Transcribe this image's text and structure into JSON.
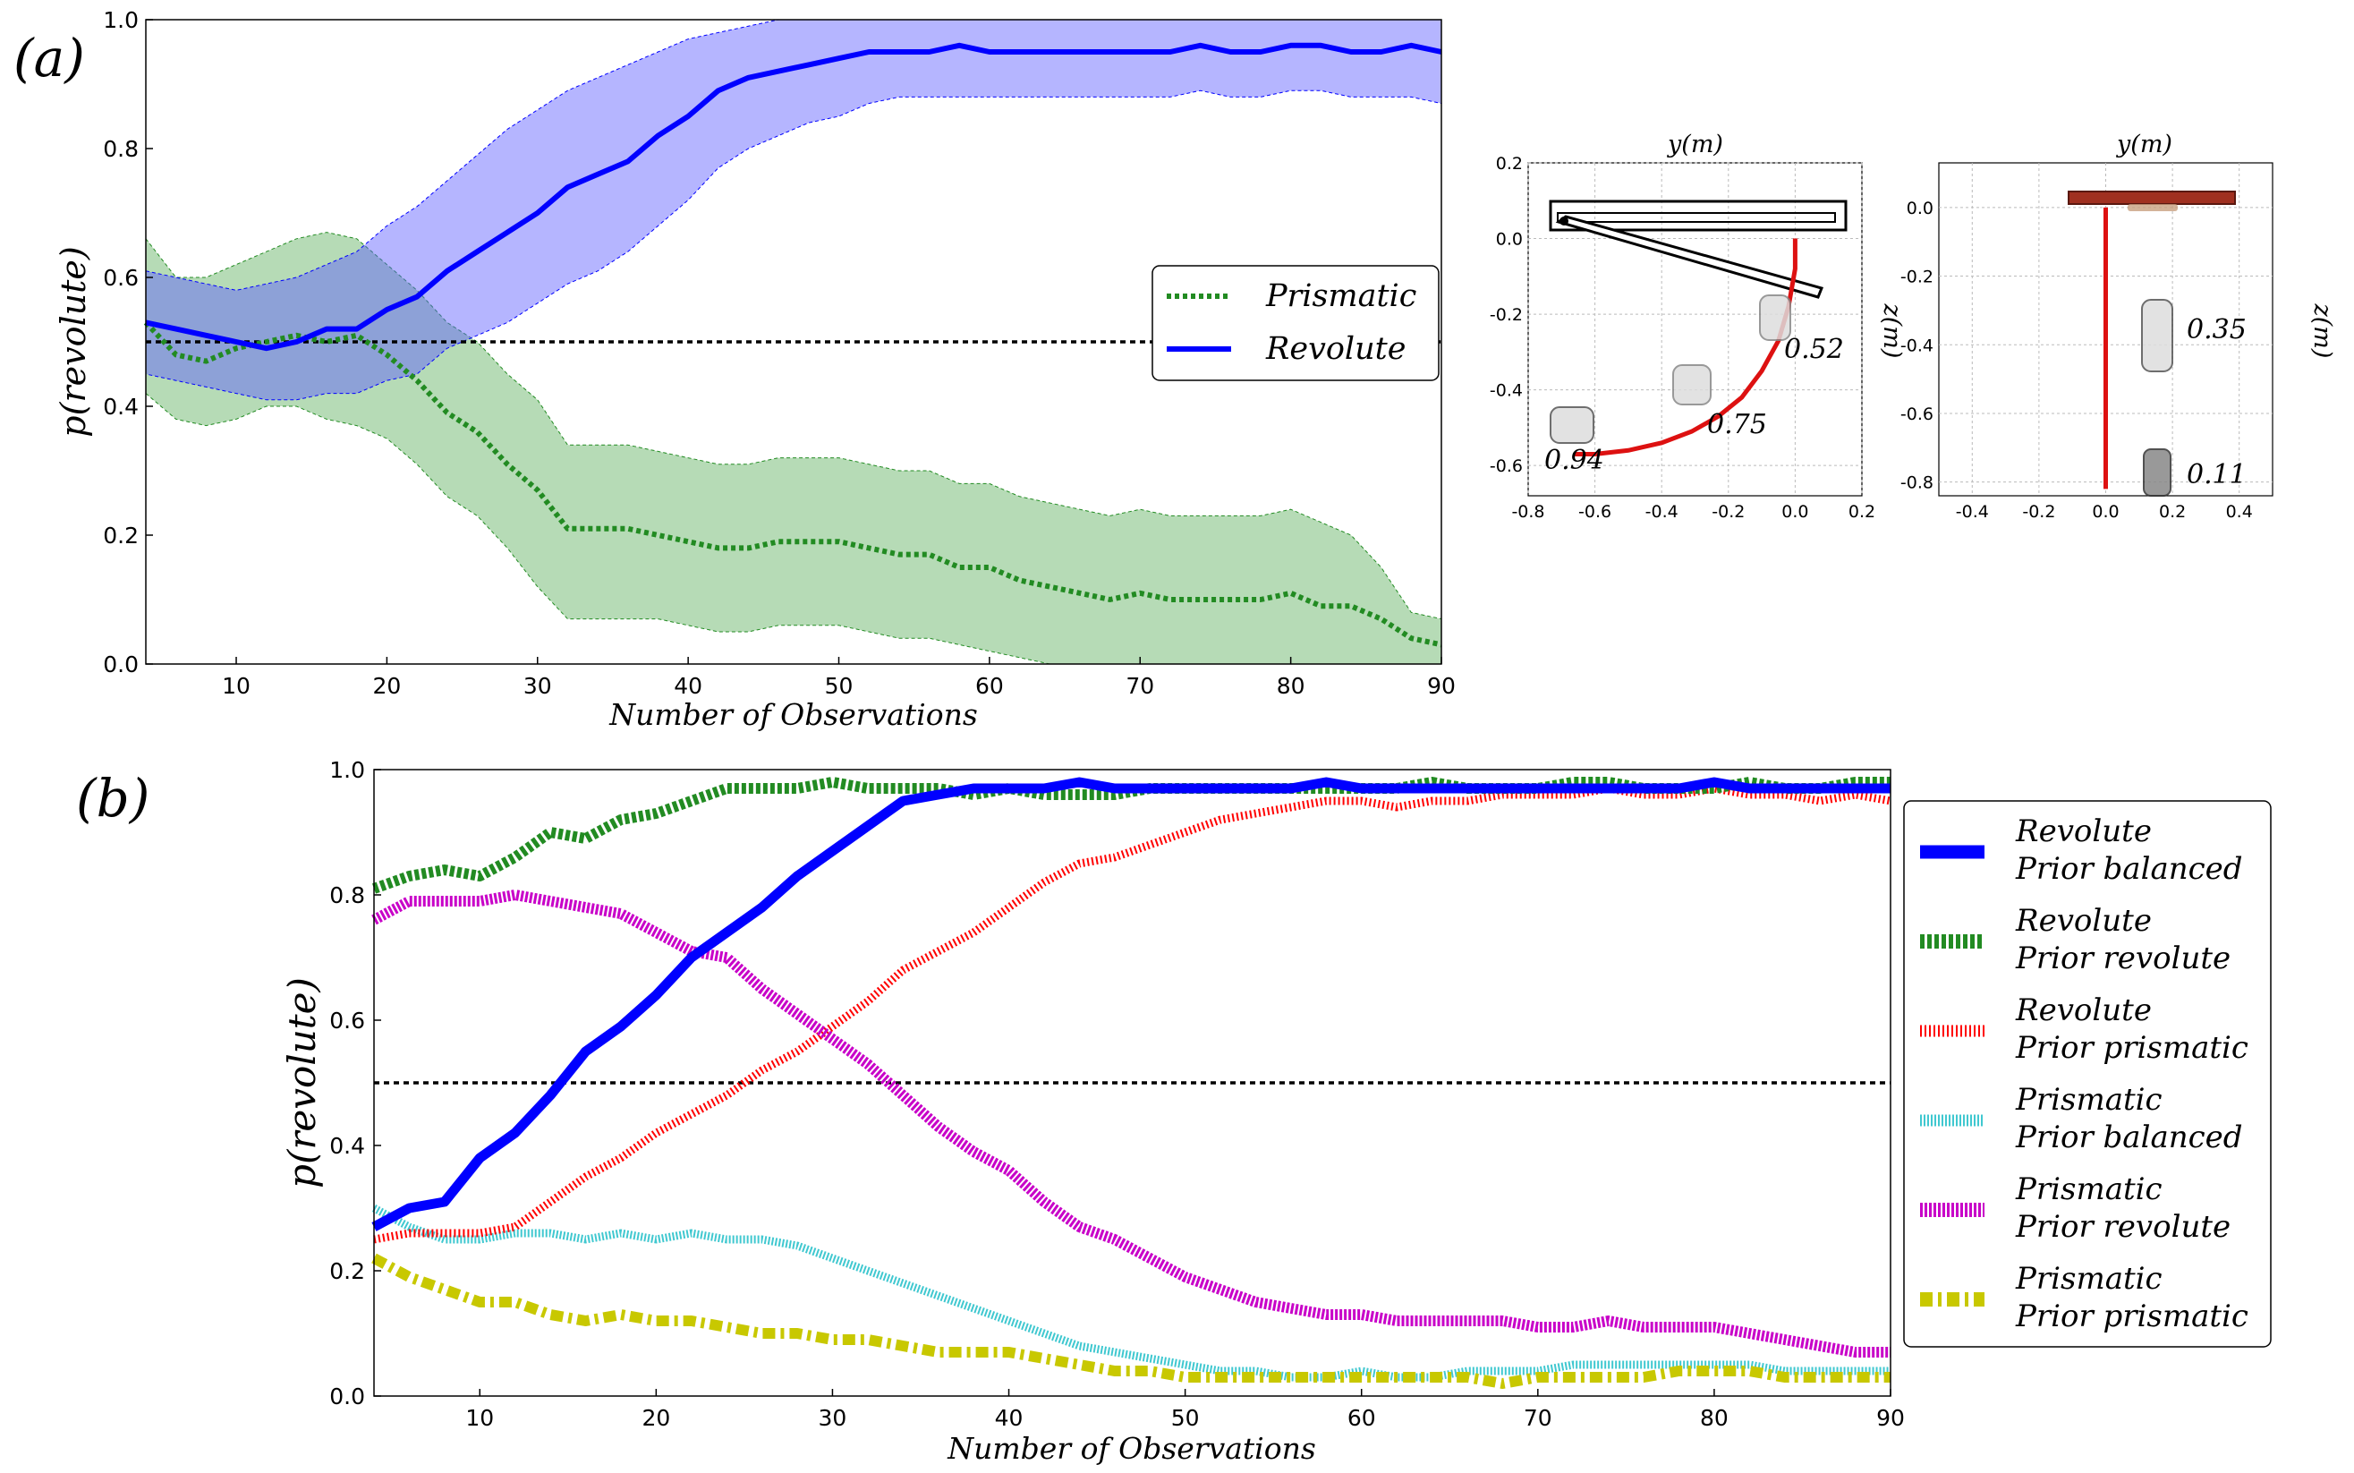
{
  "chart_data": [
    {
      "type": "line",
      "panel_label": "(a)",
      "xlabel": "Number of Observations",
      "ylabel": "p(revolute)",
      "xlim": [
        4,
        90
      ],
      "ylim": [
        0,
        1
      ],
      "xticks": [
        "10",
        "20",
        "30",
        "40",
        "50",
        "60",
        "70",
        "80",
        "90"
      ],
      "yticks": [
        "0.0",
        "0.2",
        "0.4",
        "0.6",
        "0.8",
        "1.0"
      ],
      "legend_position": "center-right",
      "threshold": 0.5,
      "x": [
        4,
        6,
        8,
        10,
        12,
        14,
        16,
        18,
        20,
        22,
        24,
        26,
        28,
        30,
        32,
        34,
        36,
        38,
        40,
        42,
        44,
        46,
        48,
        50,
        52,
        54,
        56,
        58,
        60,
        62,
        64,
        66,
        68,
        70,
        72,
        74,
        76,
        78,
        80,
        82,
        84,
        86,
        88,
        90
      ],
      "series": [
        {
          "name": "Prismatic",
          "color": "#228b22",
          "values": [
            0.53,
            0.48,
            0.47,
            0.49,
            0.5,
            0.51,
            0.5,
            0.51,
            0.48,
            0.44,
            0.39,
            0.36,
            0.31,
            0.27,
            0.21,
            0.21,
            0.21,
            0.2,
            0.19,
            0.18,
            0.18,
            0.19,
            0.19,
            0.19,
            0.18,
            0.17,
            0.17,
            0.15,
            0.15,
            0.13,
            0.12,
            0.11,
            0.1,
            0.11,
            0.1,
            0.1,
            0.1,
            0.1,
            0.11,
            0.09,
            0.09,
            0.07,
            0.04,
            0.03
          ],
          "band_upper": [
            0.66,
            0.6,
            0.6,
            0.62,
            0.64,
            0.66,
            0.67,
            0.66,
            0.62,
            0.58,
            0.53,
            0.5,
            0.45,
            0.41,
            0.34,
            0.34,
            0.34,
            0.33,
            0.32,
            0.31,
            0.31,
            0.32,
            0.32,
            0.32,
            0.31,
            0.3,
            0.3,
            0.28,
            0.28,
            0.26,
            0.25,
            0.24,
            0.23,
            0.24,
            0.23,
            0.23,
            0.23,
            0.23,
            0.24,
            0.22,
            0.2,
            0.15,
            0.08,
            0.07
          ],
          "band_lower": [
            0.42,
            0.38,
            0.37,
            0.38,
            0.4,
            0.4,
            0.38,
            0.37,
            0.35,
            0.31,
            0.26,
            0.23,
            0.18,
            0.12,
            0.07,
            0.07,
            0.07,
            0.07,
            0.06,
            0.05,
            0.05,
            0.06,
            0.06,
            0.06,
            0.05,
            0.04,
            0.04,
            0.03,
            0.02,
            0.01,
            0.0,
            0.0,
            0.0,
            0.0,
            0.0,
            0.0,
            0.0,
            0.0,
            0.0,
            0.0,
            0.0,
            0.0,
            0.0,
            0.0
          ]
        },
        {
          "name": "Revolute",
          "color": "#0000ff",
          "values": [
            0.53,
            0.52,
            0.51,
            0.5,
            0.49,
            0.5,
            0.52,
            0.52,
            0.55,
            0.57,
            0.61,
            0.64,
            0.67,
            0.7,
            0.74,
            0.76,
            0.78,
            0.82,
            0.85,
            0.89,
            0.91,
            0.92,
            0.93,
            0.94,
            0.95,
            0.95,
            0.95,
            0.96,
            0.95,
            0.95,
            0.95,
            0.95,
            0.95,
            0.95,
            0.95,
            0.96,
            0.95,
            0.95,
            0.96,
            0.96,
            0.95,
            0.95,
            0.96,
            0.95
          ],
          "band_upper": [
            0.61,
            0.6,
            0.59,
            0.58,
            0.59,
            0.6,
            0.62,
            0.64,
            0.68,
            0.71,
            0.75,
            0.79,
            0.83,
            0.86,
            0.89,
            0.91,
            0.93,
            0.95,
            0.97,
            0.98,
            0.99,
            1.0,
            1.0,
            1.0,
            1.0,
            1.0,
            1.0,
            1.0,
            1.0,
            1.0,
            1.0,
            1.0,
            1.0,
            1.0,
            1.0,
            1.0,
            1.0,
            1.0,
            1.0,
            1.0,
            1.0,
            1.0,
            1.0,
            1.0
          ],
          "band_lower": [
            0.45,
            0.44,
            0.43,
            0.42,
            0.41,
            0.41,
            0.42,
            0.42,
            0.44,
            0.45,
            0.49,
            0.51,
            0.53,
            0.56,
            0.59,
            0.61,
            0.64,
            0.68,
            0.72,
            0.77,
            0.8,
            0.82,
            0.84,
            0.85,
            0.87,
            0.88,
            0.88,
            0.88,
            0.88,
            0.88,
            0.88,
            0.88,
            0.88,
            0.88,
            0.88,
            0.89,
            0.88,
            0.88,
            0.89,
            0.89,
            0.88,
            0.88,
            0.88,
            0.87
          ]
        }
      ]
    },
    {
      "type": "scatter",
      "panel": "inset-left",
      "xlabel": "y(m)",
      "ylabel": "z(m)",
      "xlim": [
        -0.8,
        0.2
      ],
      "ylim": [
        -0.68,
        0.2
      ],
      "xticks": [
        "-0.8",
        "-0.6",
        "-0.4",
        "-0.2",
        "0.0",
        "0.2"
      ],
      "yticks": [
        "0.2",
        "0.0",
        "-0.2",
        "-0.4",
        "-0.6"
      ],
      "annotations": [
        "0.52",
        "0.75",
        "0.94"
      ],
      "trajectory": {
        "y": [
          0.0,
          0.0,
          -0.02,
          -0.05,
          -0.1,
          -0.16,
          -0.23,
          -0.31,
          -0.4,
          -0.5,
          -0.6,
          -0.66
        ],
        "z": [
          0.0,
          -0.08,
          -0.18,
          -0.27,
          -0.35,
          -0.42,
          -0.47,
          -0.51,
          -0.54,
          -0.56,
          -0.57,
          -0.57
        ]
      },
      "marker_labels_at": [
        {
          "y": 0.0,
          "z": -0.25
        },
        {
          "y": -0.25,
          "z": -0.48
        },
        {
          "y": -0.66,
          "z": -0.6
        }
      ]
    },
    {
      "type": "scatter",
      "panel": "inset-right",
      "xlabel": "y(m)",
      "ylabel": "z(m)",
      "xlim": [
        -0.5,
        0.5
      ],
      "ylim": [
        -0.84,
        0.13
      ],
      "xticks": [
        "-0.4",
        "-0.2",
        "0.0",
        "0.2",
        "0.4"
      ],
      "yticks": [
        "0.0",
        "-0.2",
        "-0.4",
        "-0.6",
        "-0.8"
      ],
      "annotations": [
        "0.35",
        "0.11"
      ],
      "trajectory": {
        "y": [
          0.0,
          0.0,
          0.0,
          0.0,
          0.0,
          0.0
        ],
        "z": [
          0.0,
          -0.15,
          -0.3,
          -0.45,
          -0.6,
          -0.82
        ]
      },
      "marker_labels_at": [
        {
          "y": 0.0,
          "z": -0.4
        },
        {
          "y": 0.0,
          "z": -0.78
        }
      ]
    },
    {
      "type": "line",
      "panel_label": "(b)",
      "xlabel": "Number of Observations",
      "ylabel": "p(revolute)",
      "xlim": [
        4,
        90
      ],
      "ylim": [
        0,
        1
      ],
      "xticks": [
        "10",
        "20",
        "30",
        "40",
        "50",
        "60",
        "70",
        "80",
        "90"
      ],
      "yticks": [
        "0.0",
        "0.2",
        "0.4",
        "0.6",
        "0.8",
        "1.0"
      ],
      "legend_position": "right-outside",
      "threshold": 0.5,
      "x": [
        4,
        6,
        8,
        10,
        12,
        14,
        16,
        18,
        20,
        22,
        24,
        26,
        28,
        30,
        32,
        34,
        36,
        38,
        40,
        42,
        44,
        46,
        48,
        50,
        52,
        54,
        56,
        58,
        60,
        62,
        64,
        66,
        68,
        70,
        72,
        74,
        76,
        78,
        80,
        82,
        84,
        86,
        88,
        90
      ],
      "series": [
        {
          "name": "Revolute",
          "prior": "Prior balanced",
          "color": "#0000ff",
          "values": [
            0.27,
            0.3,
            0.31,
            0.38,
            0.42,
            0.48,
            0.55,
            0.59,
            0.64,
            0.7,
            0.74,
            0.78,
            0.83,
            0.87,
            0.91,
            0.95,
            0.96,
            0.97,
            0.97,
            0.97,
            0.98,
            0.97,
            0.97,
            0.97,
            0.97,
            0.97,
            0.97,
            0.98,
            0.97,
            0.97,
            0.97,
            0.97,
            0.97,
            0.97,
            0.97,
            0.97,
            0.97,
            0.97,
            0.98,
            0.97,
            0.97,
            0.97,
            0.97,
            0.97
          ]
        },
        {
          "name": "Revolute",
          "prior": "Prior revolute",
          "color": "#228b22",
          "values": [
            0.81,
            0.83,
            0.84,
            0.83,
            0.86,
            0.9,
            0.89,
            0.92,
            0.93,
            0.95,
            0.97,
            0.97,
            0.97,
            0.98,
            0.97,
            0.97,
            0.97,
            0.96,
            0.97,
            0.96,
            0.96,
            0.96,
            0.97,
            0.97,
            0.97,
            0.97,
            0.97,
            0.97,
            0.97,
            0.97,
            0.98,
            0.97,
            0.97,
            0.97,
            0.98,
            0.98,
            0.97,
            0.97,
            0.97,
            0.98,
            0.97,
            0.97,
            0.98,
            0.98
          ]
        },
        {
          "name": "Revolute",
          "prior": "Prior prismatic",
          "color": "#ff0000",
          "values": [
            0.25,
            0.26,
            0.26,
            0.26,
            0.27,
            0.31,
            0.35,
            0.38,
            0.42,
            0.45,
            0.48,
            0.52,
            0.55,
            0.59,
            0.63,
            0.68,
            0.71,
            0.74,
            0.78,
            0.82,
            0.85,
            0.86,
            0.88,
            0.9,
            0.92,
            0.93,
            0.94,
            0.95,
            0.95,
            0.94,
            0.95,
            0.95,
            0.96,
            0.96,
            0.96,
            0.97,
            0.96,
            0.96,
            0.97,
            0.96,
            0.96,
            0.95,
            0.96,
            0.95
          ]
        },
        {
          "name": "Prismatic",
          "prior": "Prior balanced",
          "color": "#40c8d0",
          "values": [
            0.3,
            0.27,
            0.25,
            0.25,
            0.26,
            0.26,
            0.25,
            0.26,
            0.25,
            0.26,
            0.25,
            0.25,
            0.24,
            0.22,
            0.2,
            0.18,
            0.16,
            0.14,
            0.12,
            0.1,
            0.08,
            0.07,
            0.06,
            0.05,
            0.04,
            0.04,
            0.03,
            0.03,
            0.04,
            0.03,
            0.03,
            0.04,
            0.04,
            0.04,
            0.05,
            0.05,
            0.05,
            0.05,
            0.05,
            0.05,
            0.04,
            0.04,
            0.04,
            0.04
          ]
        },
        {
          "name": "Prismatic",
          "prior": "Prior revolute",
          "color": "#c800c8",
          "values": [
            0.76,
            0.79,
            0.79,
            0.79,
            0.8,
            0.79,
            0.78,
            0.77,
            0.74,
            0.71,
            0.7,
            0.65,
            0.61,
            0.57,
            0.53,
            0.48,
            0.43,
            0.39,
            0.36,
            0.31,
            0.27,
            0.25,
            0.22,
            0.19,
            0.17,
            0.15,
            0.14,
            0.13,
            0.13,
            0.12,
            0.12,
            0.12,
            0.12,
            0.11,
            0.11,
            0.12,
            0.11,
            0.11,
            0.11,
            0.1,
            0.09,
            0.08,
            0.07,
            0.07
          ]
        },
        {
          "name": "Prismatic",
          "prior": "Prior prismatic",
          "color": "#c8c800",
          "values": [
            0.22,
            0.19,
            0.17,
            0.15,
            0.15,
            0.13,
            0.12,
            0.13,
            0.12,
            0.12,
            0.11,
            0.1,
            0.1,
            0.09,
            0.09,
            0.08,
            0.07,
            0.07,
            0.07,
            0.06,
            0.05,
            0.04,
            0.04,
            0.03,
            0.03,
            0.03,
            0.03,
            0.03,
            0.03,
            0.03,
            0.03,
            0.03,
            0.02,
            0.03,
            0.03,
            0.03,
            0.03,
            0.04,
            0.04,
            0.04,
            0.03,
            0.03,
            0.03,
            0.03
          ]
        }
      ]
    }
  ]
}
